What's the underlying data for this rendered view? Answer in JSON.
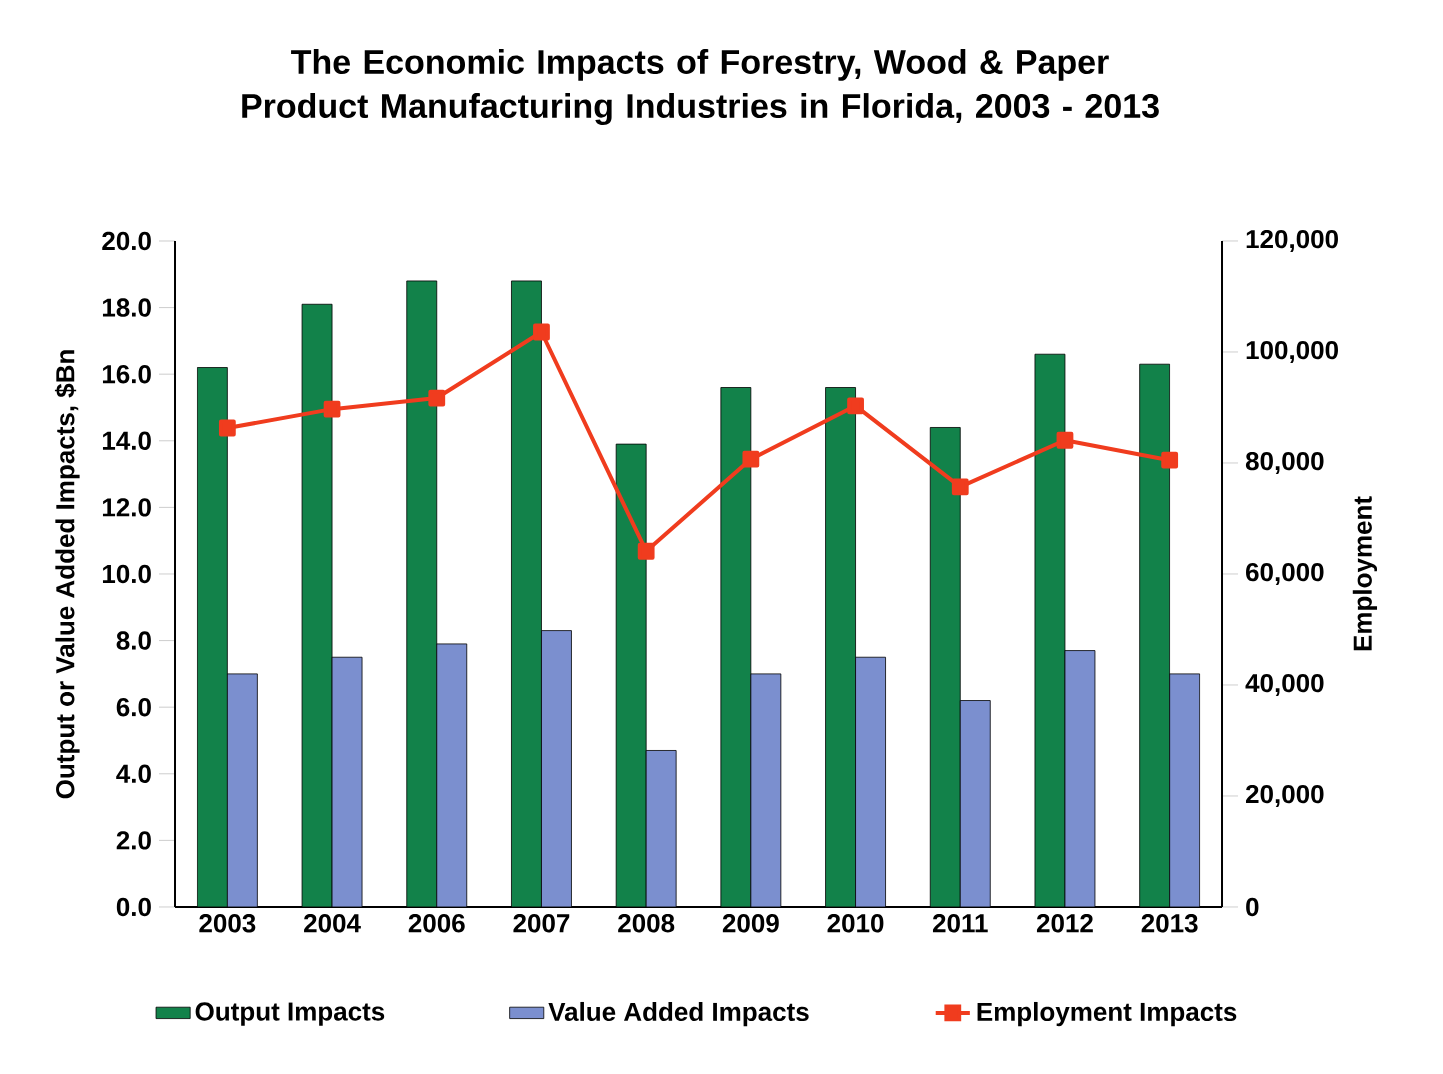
{
  "chart_data": {
    "type": "bar",
    "title": "The Economic Impacts of Forestry, Wood & Paper Product Manufacturing Industries in Florida, 2003 - 2013",
    "ylabel": "Output  or  Value Added Impacts, $Bn",
    "y2label": "Employment",
    "categories": [
      "2003",
      "2004",
      "2006",
      "2007",
      "2008",
      "2009",
      "2010",
      "2011",
      "2012",
      "2013"
    ],
    "series": [
      {
        "name": "Output Impacts",
        "color": "#12824a",
        "values": [
          16.2,
          18.1,
          18.8,
          18.8,
          13.9,
          15.6,
          15.6,
          14.4,
          16.6,
          16.3
        ]
      },
      {
        "name": "Value Added Impacts",
        "color": "#7b8fcf",
        "values": [
          7.0,
          7.5,
          7.9,
          8.3,
          4.7,
          7.0,
          7.5,
          6.2,
          7.7,
          7.0
        ]
      },
      {
        "name": "Employment Impacts",
        "type": "line",
        "axis": "y2",
        "color": "#f03c1e",
        "marker": "square",
        "values": [
          86300,
          89700,
          91700,
          103600,
          64100,
          80700,
          90300,
          75700,
          84100,
          80500
        ]
      }
    ],
    "ylim": [
      0,
      20
    ],
    "yticks": [
      {
        "value": 0,
        "label": "0.0"
      },
      {
        "value": 2,
        "label": "2.0"
      },
      {
        "value": 4,
        "label": "4.0"
      },
      {
        "value": 6,
        "label": "6.0"
      },
      {
        "value": 8,
        "label": "8.0"
      },
      {
        "value": 10,
        "label": "10.0"
      },
      {
        "value": 12,
        "label": "12.0"
      },
      {
        "value": 14,
        "label": "14.0"
      },
      {
        "value": 16,
        "label": "16.0"
      },
      {
        "value": 18,
        "label": "18.0"
      },
      {
        "value": 20,
        "label": "20.0"
      }
    ],
    "y2lim": [
      0,
      120000
    ],
    "y2ticks": [
      0,
      {
        "value": 20000,
        "label": "20,000"
      },
      {
        "value": 40000,
        "label": "40,000"
      },
      {
        "value": 60000,
        "label": "60,000"
      },
      {
        "value": 80000,
        "label": "80,000"
      },
      {
        "value": 100000,
        "label": "100,000"
      },
      {
        "value": 120000,
        "label": "120,000"
      }
    ],
    "grid": false,
    "legend": "bottom"
  }
}
